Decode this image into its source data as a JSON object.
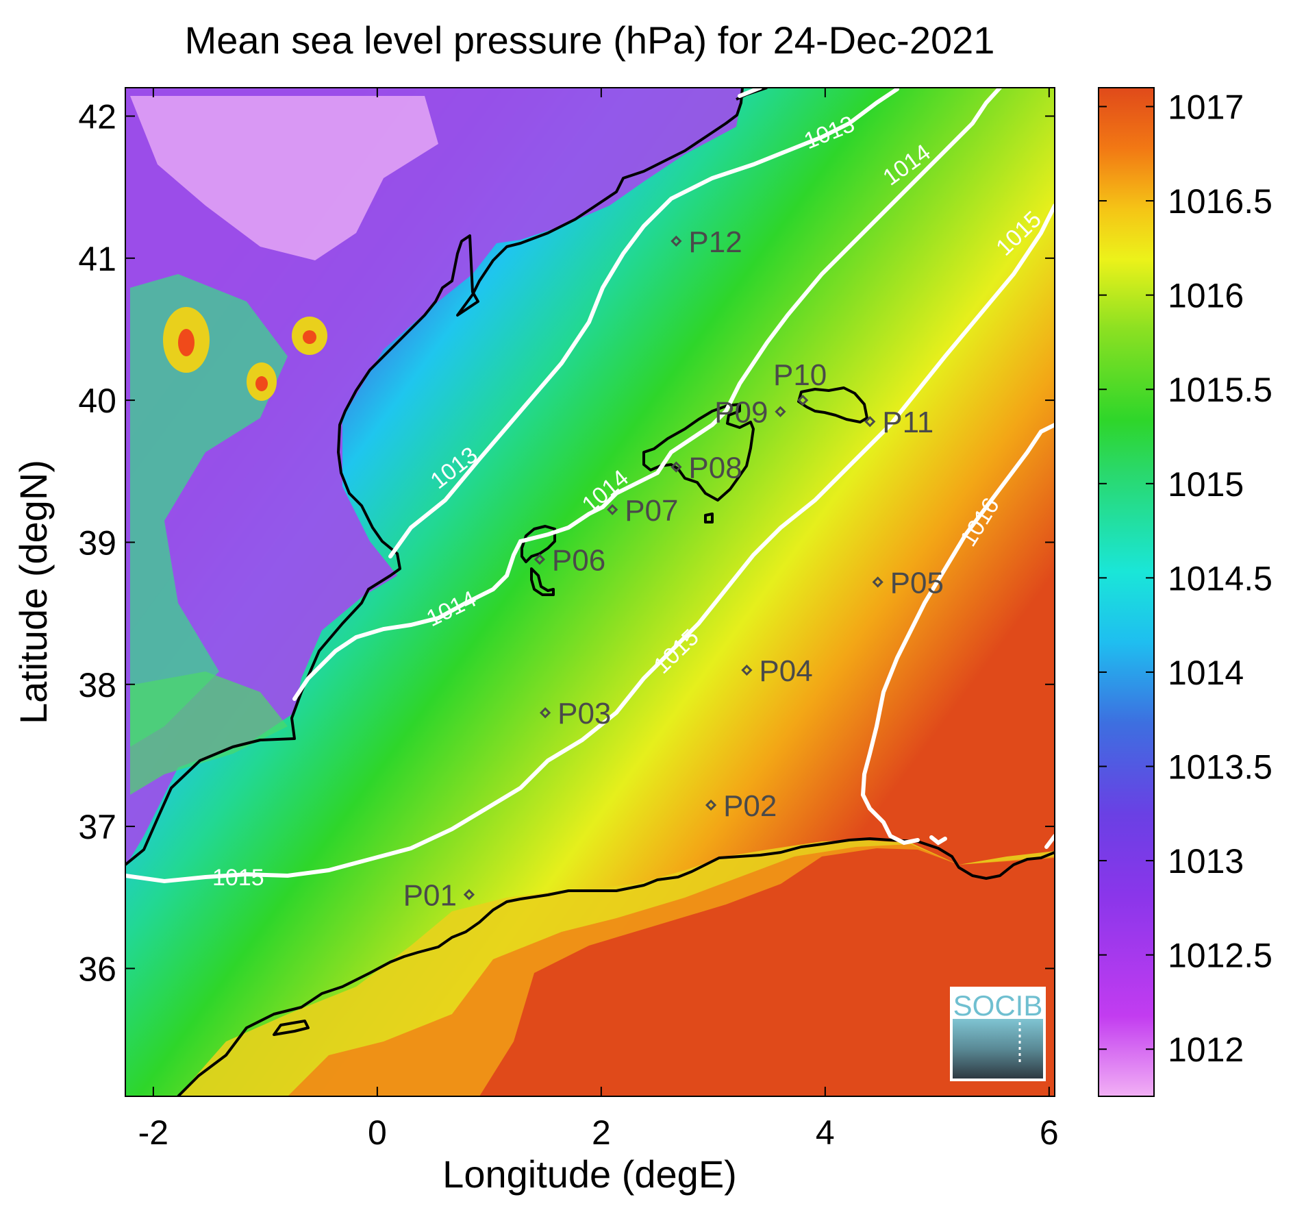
{
  "title": "Mean sea level pressure (hPa) for 24-Dec-2021",
  "x_axis": {
    "label": "Longitude (degE)",
    "ticks": [
      -2,
      0,
      2,
      4,
      6
    ],
    "range": [
      -2.25,
      6.05
    ]
  },
  "y_axis": {
    "label": "Latitude (degN)",
    "ticks": [
      36,
      37,
      38,
      39,
      40,
      41,
      42
    ],
    "range": [
      35.1,
      42.2
    ]
  },
  "colorbar": {
    "range": [
      1011.75,
      1017.1
    ],
    "ticks": [
      "1012",
      "1012.5",
      "1013",
      "1013.5",
      "1014",
      "1014.5",
      "1015",
      "1015.5",
      "1016",
      "1016.5",
      "1017"
    ],
    "colors": [
      "#f2b0f5",
      "#c23cf0",
      "#7a38e6",
      "#3d6fe0",
      "#1fbef0",
      "#1ae6d8",
      "#2ad86a",
      "#2ed62a",
      "#8be022",
      "#ecf21a",
      "#f5c416",
      "#f27814",
      "#e04a1a"
    ]
  },
  "contours": [
    {
      "label": "1013"
    },
    {
      "label": "1014"
    },
    {
      "label": "1015"
    },
    {
      "label": "1016"
    }
  ],
  "stations": [
    {
      "id": "P01",
      "lon": 0.82,
      "lat": 36.52
    },
    {
      "id": "P02",
      "lon": 2.98,
      "lat": 37.15
    },
    {
      "id": "P03",
      "lon": 1.5,
      "lat": 37.8
    },
    {
      "id": "P04",
      "lon": 3.3,
      "lat": 38.1
    },
    {
      "id": "P05",
      "lon": 4.47,
      "lat": 38.72
    },
    {
      "id": "P06",
      "lon": 1.45,
      "lat": 38.88
    },
    {
      "id": "P07",
      "lon": 2.1,
      "lat": 39.23
    },
    {
      "id": "P08",
      "lon": 2.67,
      "lat": 39.53
    },
    {
      "id": "P09",
      "lon": 3.6,
      "lat": 39.92
    },
    {
      "id": "P10",
      "lon": 3.8,
      "lat": 40.0
    },
    {
      "id": "P11",
      "lon": 4.4,
      "lat": 39.85
    },
    {
      "id": "P12",
      "lon": 2.67,
      "lat": 41.12
    }
  ],
  "logo_text": "SOCIB"
}
